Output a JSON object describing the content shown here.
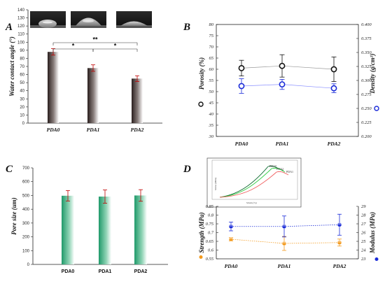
{
  "colors": {
    "bar_dark": "#2a1f1e",
    "bar_light": "#ffffff",
    "bar_green": "#1f9a6a",
    "porosity": "#111111",
    "density": "#1a2bd8",
    "strength": "#f39a1d",
    "modulus": "#1a2bd8",
    "insert_green_dark": "#0b6b2e",
    "insert_green": "#2ecc40",
    "insert_red": "#f06060",
    "err_red": "#c00000"
  },
  "panels": {
    "A": {
      "letter": "A"
    },
    "B": {
      "letter": "B"
    },
    "C": {
      "letter": "C"
    },
    "D": {
      "letter": "D"
    }
  },
  "chart_data": [
    {
      "id": "A",
      "type": "bar",
      "categories": [
        "PDA0",
        "PDA1",
        "PDA2"
      ],
      "values": [
        88,
        68,
        55
      ],
      "errors": [
        4,
        4,
        3.5
      ],
      "ylabel": "Water contact angle (°)",
      "ylim": [
        0,
        140
      ],
      "yticks": [
        0,
        10,
        20,
        30,
        40,
        50,
        60,
        70,
        80,
        90,
        100,
        110,
        120,
        130,
        140
      ],
      "significance": [
        {
          "from": "PDA0",
          "to": "PDA2",
          "label": "**"
        },
        {
          "from": "PDA0",
          "to": "PDA1",
          "label": "*"
        },
        {
          "from": "PDA1",
          "to": "PDA2",
          "label": "*"
        }
      ],
      "insets": "droplet photographs above each bar"
    },
    {
      "id": "B",
      "type": "line",
      "categories": [
        "PDA0",
        "PDA1",
        "PDA2"
      ],
      "series": [
        {
          "name": "Porosity (%)",
          "values": [
            60.5,
            61.5,
            60
          ],
          "errors": [
            3.5,
            5,
            5.5
          ],
          "axis": "left"
        },
        {
          "name": "Density (g/cm³)",
          "values": [
            0.29,
            0.293,
            0.286
          ],
          "errors": [
            0.013,
            0.009,
            0.008
          ],
          "axis": "right"
        }
      ],
      "y_left": {
        "label": "Porosity (%)",
        "lim": [
          30,
          80
        ],
        "ticks": [
          30,
          35,
          40,
          45,
          50,
          55,
          60,
          65,
          70,
          75,
          80
        ]
      },
      "y_right": {
        "label": "Density (g/cm³)",
        "lim": [
          0.2,
          0.4
        ],
        "ticks": [
          "0.200",
          "0.225",
          "0.250",
          "0.275",
          "0.300",
          "0.325",
          "0.350",
          "0.375",
          "0.400"
        ]
      },
      "grid": false,
      "legend": "inline with axis labels"
    },
    {
      "id": "C",
      "type": "bar",
      "categories": [
        "PDA0",
        "PDA1",
        "PDA2"
      ],
      "values": [
        498,
        492,
        500
      ],
      "errors": [
        38,
        48,
        42
      ],
      "ylabel": "Pore size (um)",
      "ylim": [
        0,
        700
      ],
      "yticks": [
        0,
        100,
        200,
        300,
        400,
        500,
        600,
        700
      ]
    },
    {
      "id": "D",
      "type": "line",
      "categories": [
        "PDA0",
        "PDA1",
        "PDA2"
      ],
      "series": [
        {
          "name": "Strength (MPa)",
          "values": [
            0.662,
            0.638,
            0.643
          ],
          "errors": [
            0.01,
            0.04,
            0.02
          ],
          "axis": "left"
        },
        {
          "name": "Modulus (MPa)",
          "values": [
            26.7,
            26.7,
            26.9
          ],
          "errors": [
            0.5,
            1.2,
            1.2
          ],
          "axis": "right"
        }
      ],
      "y_left": {
        "label": "Strength (MPa)",
        "lim": [
          0.55,
          0.85
        ],
        "ticks": [
          "0.55",
          "0.6",
          "0.65",
          "0.7",
          "0.75",
          "0.8",
          "0.85"
        ]
      },
      "y_right": {
        "label": "Modulus (MPa)",
        "lim": [
          23,
          29
        ],
        "ticks": [
          23,
          24,
          25,
          26,
          27,
          28,
          29
        ]
      },
      "inset": {
        "xlabel": "Strain (%)",
        "ylabel": "Stress (MPa)",
        "series": [
          "PDA0",
          "PDA2",
          "PDA1"
        ]
      }
    }
  ]
}
